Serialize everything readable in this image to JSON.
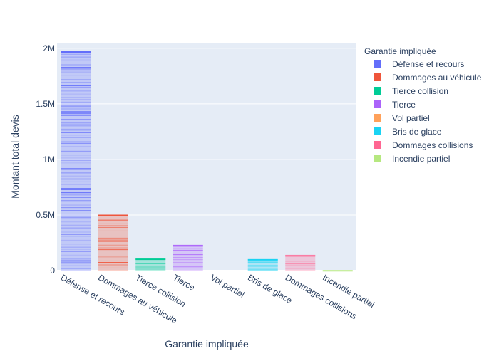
{
  "chart_data": {
    "type": "bar",
    "title": "",
    "xlabel": "Garantie impliquée",
    "ylabel": "Montant total devis",
    "ylim": [
      0,
      2050000
    ],
    "yticks": [
      0,
      500000,
      1000000,
      1500000,
      2000000
    ],
    "ytick_labels": [
      "0",
      "0.5M",
      "1M",
      "1.5M",
      "2M"
    ],
    "grid": true,
    "legend_title": "Garantie impliquée",
    "legend_position": "right",
    "categories": [
      "Défense et recours",
      "Dommages au véhicule",
      "Tierce collision",
      "Tierce",
      "Vol partiel",
      "Bris de glace",
      "Dommages collisions",
      "Incendie partiel"
    ],
    "series": [
      {
        "name": "Défense et recours",
        "color": "#636efa",
        "values": [
          1970000,
          0,
          0,
          0,
          0,
          0,
          0,
          0
        ]
      },
      {
        "name": "Dommages au véhicule",
        "color": "#ef553b",
        "values": [
          0,
          500000,
          0,
          0,
          0,
          0,
          0,
          0
        ]
      },
      {
        "name": "Tierce collision",
        "color": "#00cc96",
        "values": [
          0,
          0,
          105000,
          0,
          0,
          0,
          0,
          0
        ]
      },
      {
        "name": "Tierce",
        "color": "#ab63fa",
        "values": [
          0,
          0,
          0,
          225000,
          0,
          0,
          0,
          0
        ]
      },
      {
        "name": "Vol partiel",
        "color": "#ffa15a",
        "values": [
          0,
          0,
          0,
          0,
          0,
          0,
          0,
          0
        ]
      },
      {
        "name": "Bris de glace",
        "color": "#19d3f3",
        "values": [
          0,
          0,
          0,
          0,
          0,
          100000,
          0,
          0
        ]
      },
      {
        "name": "Dommages collisions",
        "color": "#ff6692",
        "values": [
          0,
          0,
          0,
          0,
          0,
          0,
          135000,
          0
        ]
      },
      {
        "name": "Incendie partiel",
        "color": "#b6e880",
        "values": [
          0,
          0,
          0,
          0,
          0,
          0,
          0,
          2000
        ]
      }
    ]
  }
}
